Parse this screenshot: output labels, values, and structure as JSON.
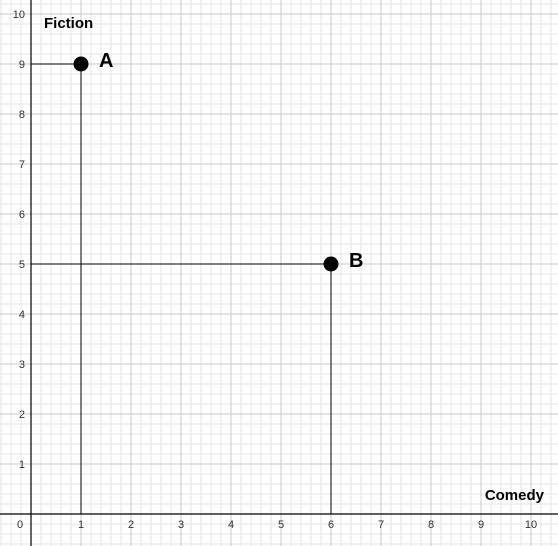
{
  "chart_data": {
    "type": "scatter",
    "xlabel": "Comedy",
    "ylabel": "Fiction",
    "xlim": [
      0,
      10
    ],
    "ylim": [
      0,
      10
    ],
    "x_ticks": [
      0,
      1,
      2,
      3,
      4,
      5,
      6,
      7,
      8,
      9,
      10
    ],
    "y_ticks": [
      1,
      2,
      3,
      4,
      5,
      6,
      7,
      8,
      9,
      10
    ],
    "grid": true,
    "minor_grid_per_unit": 5,
    "points": [
      {
        "label": "A",
        "x": 1,
        "y": 9
      },
      {
        "label": "B",
        "x": 6,
        "y": 5
      }
    ],
    "guide_lines": true,
    "colors": {
      "point": "#000000",
      "major_grid": "#c8c8c8",
      "minor_grid": "#e6e6e6",
      "axis": "#000000"
    }
  }
}
